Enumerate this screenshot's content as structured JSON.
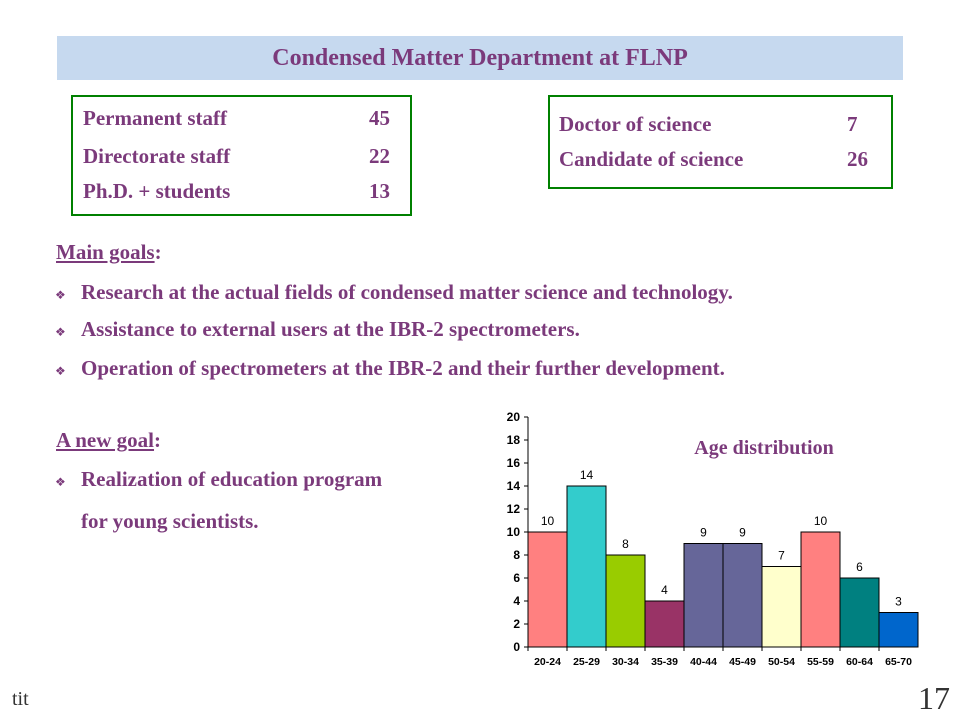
{
  "title": "Condensed Matter Department at FLNP",
  "staff": [
    {
      "label": "Permanent staff",
      "value": "45"
    },
    {
      "label": "Directorate staff",
      "value": "22"
    },
    {
      "label": "Ph.D. + students",
      "value": "13"
    }
  ],
  "degrees": [
    {
      "label": "Doctor of science",
      "value": "7"
    },
    {
      "label": "Candidate of science",
      "value": "26"
    }
  ],
  "main_goals": {
    "heading": "Main goals",
    "items": [
      "Research at the actual fields of condensed matter science and technology.",
      "Assistance to external users at the IBR-2 spectrometers.",
      "Operation of spectrometers at the IBR-2 and their further development."
    ]
  },
  "new_goal": {
    "heading": "A new goal",
    "line1": "Realization of education program",
    "line2": "for young scientists."
  },
  "footer": {
    "left": "tit",
    "page": "17"
  },
  "chart_data": {
    "type": "bar",
    "title": "Age distribution",
    "categories": [
      "20-24",
      "25-29",
      "30-34",
      "35-39",
      "40-44",
      "45-49",
      "50-54",
      "55-59",
      "60-64",
      "65-70"
    ],
    "values": [
      10,
      14,
      8,
      4,
      9,
      9,
      7,
      10,
      6,
      3
    ],
    "colors": [
      "#ff8080",
      "#33cccc",
      "#99cc00",
      "#993366",
      "#666699",
      "#666699",
      "#ffffcc",
      "#ff8080",
      "#008080",
      "#0066cc"
    ],
    "ylim": [
      0,
      20
    ],
    "yticks": [
      0,
      2,
      4,
      6,
      8,
      10,
      12,
      14,
      16,
      18,
      20
    ],
    "xlabel": "",
    "ylabel": "",
    "grid": false
  }
}
